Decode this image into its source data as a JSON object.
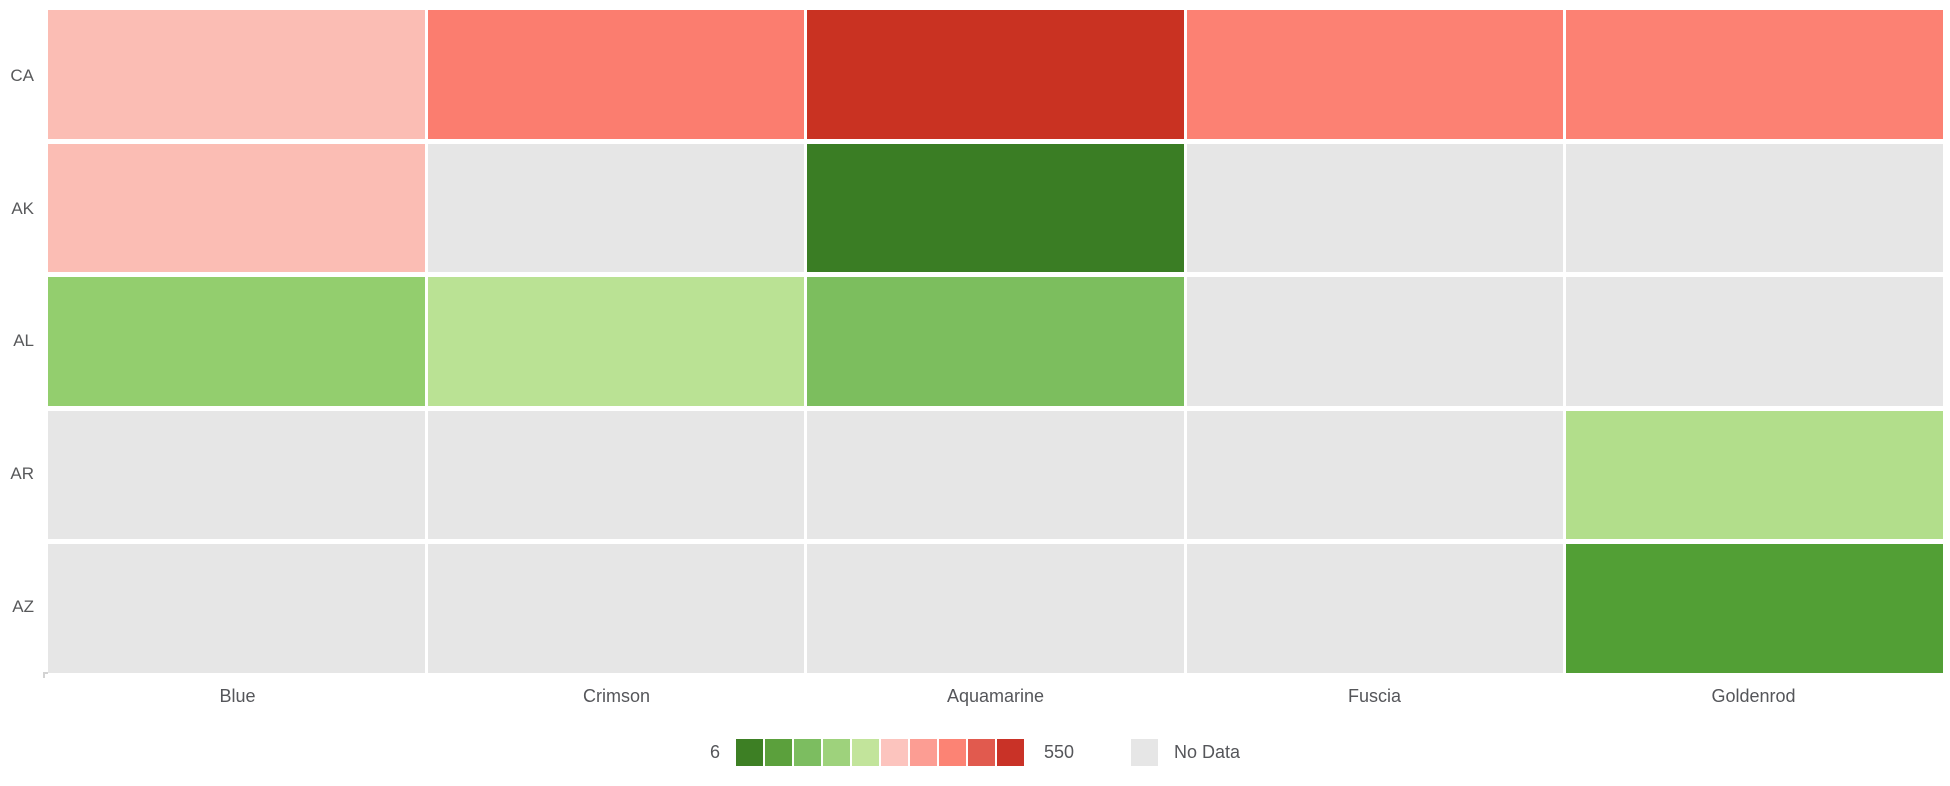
{
  "chart_data": {
    "type": "heatmap",
    "title": "",
    "xlabel": "",
    "ylabel": "",
    "x_axis_labels": [
      "Blue",
      "Crimson",
      "Aquamarine",
      "Fuscia",
      "Goldenrod"
    ],
    "y_axis_labels": [
      "CA",
      "AK",
      "AL",
      "AR",
      "AZ"
    ],
    "value_domain": [
      6,
      550
    ],
    "legend": {
      "min_label": "6",
      "max_label": "550",
      "no_data_label": "No Data",
      "no_data_color": "#e6e6e6",
      "scale_colors": [
        "#3d7f24",
        "#5ba03c",
        "#7cbd60",
        "#9ed27c",
        "#c2e49b",
        "#fcc4be",
        "#fc9d93",
        "#fc8374",
        "#e15a4e",
        "#c93227"
      ],
      "position": "bottom-center"
    },
    "grid": "white-gaps-between-cells",
    "cells": [
      [
        {
          "row": "CA",
          "col": "Blue",
          "color": "#fbbdb4",
          "value_estimate": 330,
          "no_data": false
        },
        {
          "row": "CA",
          "col": "Crimson",
          "color": "#fb7d6f",
          "value_estimate": 425,
          "no_data": false
        },
        {
          "row": "CA",
          "col": "Aquamarine",
          "color": "#c93222",
          "value_estimate": 540,
          "no_data": false
        },
        {
          "row": "CA",
          "col": "Fuscia",
          "color": "#fc8173",
          "value_estimate": 415,
          "no_data": false
        },
        {
          "row": "CA",
          "col": "Goldenrod",
          "color": "#fc8173",
          "value_estimate": 415,
          "no_data": false
        }
      ],
      [
        {
          "row": "AK",
          "col": "Blue",
          "color": "#fbbdb4",
          "value_estimate": 330,
          "no_data": false
        },
        {
          "row": "AK",
          "col": "Crimson",
          "color": null,
          "value_estimate": null,
          "no_data": true
        },
        {
          "row": "AK",
          "col": "Aquamarine",
          "color": "#3a7d24",
          "value_estimate": 10,
          "no_data": false
        },
        {
          "row": "AK",
          "col": "Fuscia",
          "color": null,
          "value_estimate": null,
          "no_data": true
        },
        {
          "row": "AK",
          "col": "Goldenrod",
          "color": null,
          "value_estimate": null,
          "no_data": true
        }
      ],
      [
        {
          "row": "AL",
          "col": "Blue",
          "color": "#93ce6e",
          "value_estimate": 175,
          "no_data": false
        },
        {
          "row": "AL",
          "col": "Crimson",
          "color": "#bae294",
          "value_estimate": 250,
          "no_data": false
        },
        {
          "row": "AL",
          "col": "Aquamarine",
          "color": "#7cbe5e",
          "value_estimate": 145,
          "no_data": false
        },
        {
          "row": "AL",
          "col": "Fuscia",
          "color": null,
          "value_estimate": null,
          "no_data": true
        },
        {
          "row": "AL",
          "col": "Goldenrod",
          "color": null,
          "value_estimate": null,
          "no_data": true
        }
      ],
      [
        {
          "row": "AR",
          "col": "Blue",
          "color": null,
          "value_estimate": null,
          "no_data": true
        },
        {
          "row": "AR",
          "col": "Crimson",
          "color": null,
          "value_estimate": null,
          "no_data": true
        },
        {
          "row": "AR",
          "col": "Aquamarine",
          "color": null,
          "value_estimate": null,
          "no_data": true
        },
        {
          "row": "AR",
          "col": "Fuscia",
          "color": null,
          "value_estimate": null,
          "no_data": true
        },
        {
          "row": "AR",
          "col": "Goldenrod",
          "color": "#b2de8b",
          "value_estimate": 225,
          "no_data": false
        }
      ],
      [
        {
          "row": "AZ",
          "col": "Blue",
          "color": null,
          "value_estimate": null,
          "no_data": true
        },
        {
          "row": "AZ",
          "col": "Crimson",
          "color": null,
          "value_estimate": null,
          "no_data": true
        },
        {
          "row": "AZ",
          "col": "Aquamarine",
          "color": null,
          "value_estimate": null,
          "no_data": true
        },
        {
          "row": "AZ",
          "col": "Fuscia",
          "color": null,
          "value_estimate": null,
          "no_data": true
        },
        {
          "row": "AZ",
          "col": "Goldenrod",
          "color": "#529f35",
          "value_estimate": 85,
          "no_data": false
        }
      ]
    ]
  }
}
